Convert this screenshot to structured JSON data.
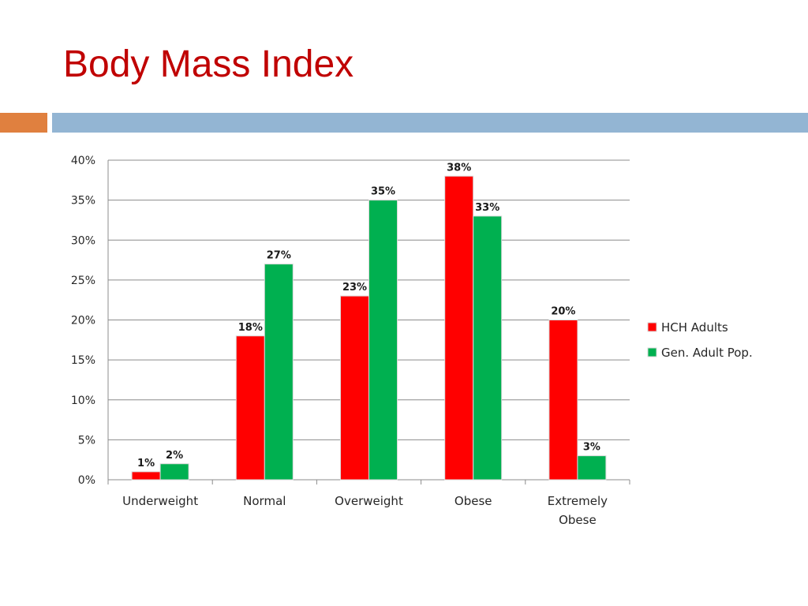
{
  "slide": {
    "title": "Body Mass Index",
    "accent_color": "#e0803f",
    "rule_color": "#93b5d3",
    "title_color": "#c00000"
  },
  "chart_data": {
    "type": "bar",
    "categories": [
      [
        "Underweight"
      ],
      [
        "Normal"
      ],
      [
        "Overweight"
      ],
      [
        "Obese"
      ],
      [
        "Extremely",
        "Obese"
      ]
    ],
    "series": [
      {
        "name": "HCH Adults",
        "color": "#ff0000",
        "values": [
          1,
          18,
          23,
          38,
          20
        ],
        "labels": [
          "1%",
          "18%",
          "23%",
          "38%",
          "20%"
        ]
      },
      {
        "name": "Gen. Adult Pop.",
        "color": "#00b050",
        "values": [
          2,
          27,
          35,
          33,
          3
        ],
        "labels": [
          "2%",
          "27%",
          "35%",
          "33%",
          "3%"
        ]
      }
    ],
    "y_ticks": [
      {
        "value": 0,
        "label": "0%"
      },
      {
        "value": 5,
        "label": "5%"
      },
      {
        "value": 10,
        "label": "10%"
      },
      {
        "value": 15,
        "label": "15%"
      },
      {
        "value": 20,
        "label": "20%"
      },
      {
        "value": 25,
        "label": "25%"
      },
      {
        "value": 30,
        "label": "30%"
      },
      {
        "value": 35,
        "label": "35%"
      },
      {
        "value": 40,
        "label": "40%"
      }
    ],
    "ylim": [
      0,
      40
    ],
    "grid": true,
    "legend": "right"
  }
}
